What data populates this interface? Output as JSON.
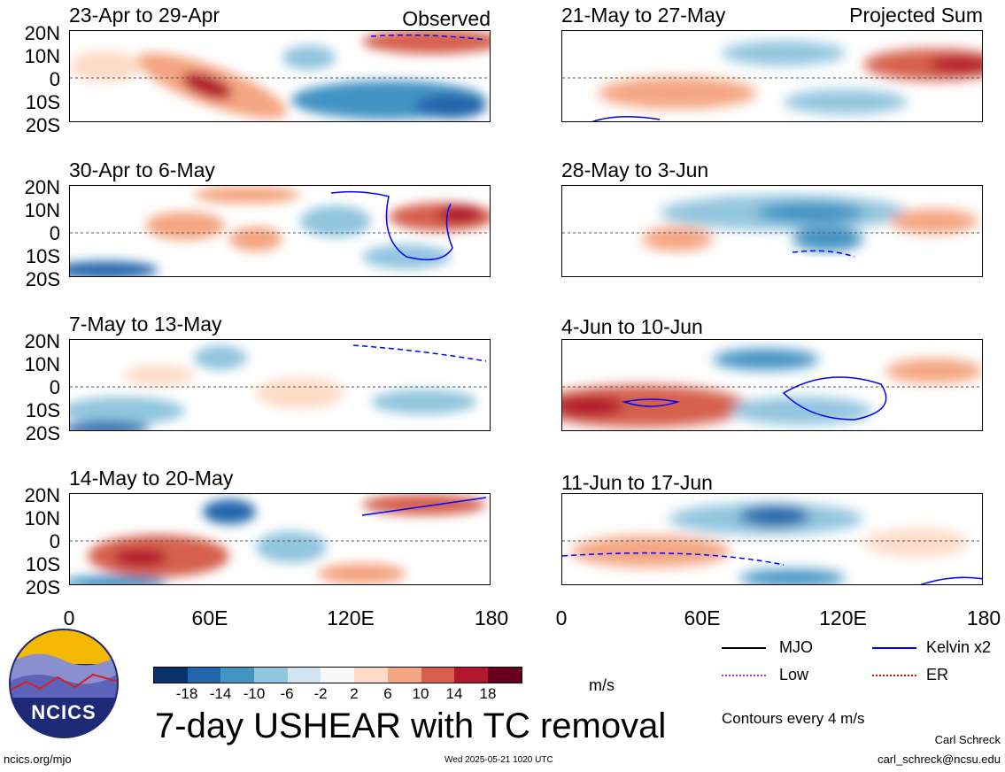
{
  "header": {
    "left_label": "Observed",
    "right_label": "Projected Sum"
  },
  "panels_left": [
    {
      "title": "23-Apr to 29-Apr"
    },
    {
      "title": "30-Apr to 6-May"
    },
    {
      "title": "7-May to 13-May"
    },
    {
      "title": "14-May to 20-May"
    }
  ],
  "panels_right": [
    {
      "title": "21-May to 27-May"
    },
    {
      "title": "28-May to 3-Jun"
    },
    {
      "title": "4-Jun to 10-Jun"
    },
    {
      "title": "11-Jun to 17-Jun"
    }
  ],
  "lat_labels": [
    "20N",
    "10N",
    "0",
    "10S",
    "20S"
  ],
  "lon_labels": [
    "0",
    "60E",
    "120E",
    "180"
  ],
  "colorbar": {
    "ticks": [
      "-18",
      "-14",
      "-10",
      "-6",
      "-2",
      "2",
      "6",
      "10",
      "14",
      "18"
    ],
    "colors": [
      "#08306b",
      "#2166ac",
      "#4393c3",
      "#92c5de",
      "#d1e5f0",
      "#f7f7f7",
      "#fddbc7",
      "#f4a582",
      "#d6604d",
      "#b2182b",
      "#67001f"
    ],
    "units": "m/s"
  },
  "legend": {
    "mjo": "MJO",
    "kelvin": "Kelvin x2",
    "low": "Low",
    "er": "ER",
    "contours_note": "Contours every 4 m/s",
    "colors": {
      "mjo": "#000000",
      "kelvin": "#0000ff",
      "low": "#9933ff",
      "er": "#ff0000"
    }
  },
  "main_title": "7-day USHEAR with TC removal",
  "logo_text": "NCICS",
  "footer": {
    "url": "ncics.org/mjo",
    "timestamp": "Wed 2025-05-21 1020 UTC",
    "author": "Carl Schreck",
    "email": "carl_schreck@ncsu.edu"
  }
}
